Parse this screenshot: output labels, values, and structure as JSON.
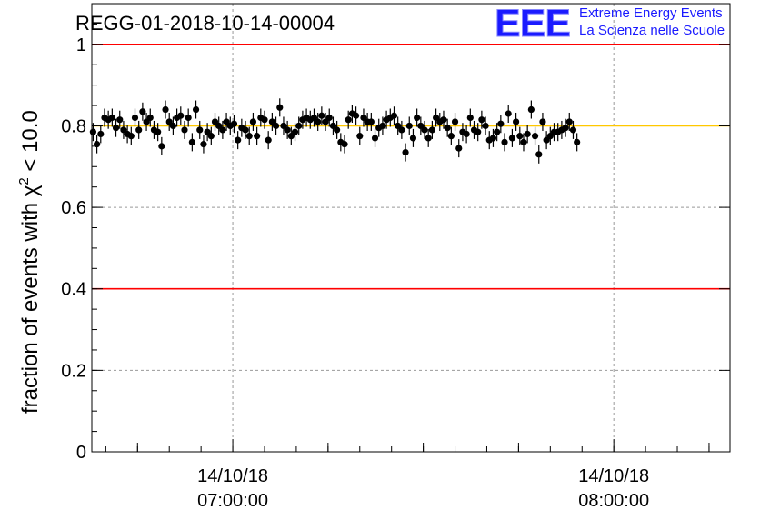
{
  "chart_data": {
    "type": "scatter",
    "title": "REGG-01-2018-10-14-00004",
    "ylabel": "fraction of events with χ² < 10.0",
    "ylabel_main": "fraction of events with ",
    "ylabel_chi": "χ",
    "ylabel_sup": "2",
    "ylabel_tail": " < 10.0",
    "ylim": [
      0,
      1.1
    ],
    "yticks": [
      {
        "value": 0,
        "label": "0"
      },
      {
        "value": 0.2,
        "label": "0.2"
      },
      {
        "value": 0.4,
        "label": "0.4"
      },
      {
        "value": 0.6,
        "label": "0.6"
      },
      {
        "value": 0.8,
        "label": "0.8"
      },
      {
        "value": 1,
        "label": "1"
      }
    ],
    "xlim_minutes": [
      37.8,
      138.3
    ],
    "x_major_ticks": [
      {
        "minute": 60,
        "date": "14/10/18",
        "time": "07:00:00"
      },
      {
        "minute": 120,
        "date": "14/10/18",
        "time": "08:00:00"
      }
    ],
    "x_minor_step_minutes": 15,
    "reference_lines": [
      {
        "y": 1.0,
        "color": "#ff0000"
      },
      {
        "y": 0.4,
        "color": "#ff0000"
      },
      {
        "y": 0.8,
        "color": "#ffc800"
      }
    ],
    "grid": true,
    "marker_color": "#000000",
    "series": [
      {
        "x_start_minute": 38.0,
        "x_step_minutes": 0.6,
        "y": [
          0.785,
          0.755,
          0.78,
          0.82,
          0.815,
          0.82,
          0.795,
          0.815,
          0.79,
          0.78,
          0.775,
          0.82,
          0.79,
          0.835,
          0.81,
          0.82,
          0.79,
          0.785,
          0.75,
          0.84,
          0.81,
          0.8,
          0.82,
          0.825,
          0.79,
          0.82,
          0.76,
          0.84,
          0.79,
          0.755,
          0.785,
          0.775,
          0.81,
          0.8,
          0.79,
          0.81,
          0.8,
          0.805,
          0.765,
          0.795,
          0.79,
          0.775,
          0.81,
          0.775,
          0.82,
          0.815,
          0.765,
          0.81,
          0.8,
          0.845,
          0.8,
          0.79,
          0.775,
          0.785,
          0.8,
          0.815,
          0.82,
          0.815,
          0.82,
          0.81,
          0.825,
          0.81,
          0.82,
          0.8,
          0.79,
          0.76,
          0.755,
          0.815,
          0.83,
          0.825,
          0.775,
          0.82,
          0.81,
          0.81,
          0.77,
          0.795,
          0.8,
          0.815,
          0.82,
          0.825,
          0.8,
          0.79,
          0.735,
          0.8,
          0.77,
          0.82,
          0.8,
          0.79,
          0.77,
          0.79,
          0.82,
          0.81,
          0.815,
          0.795,
          0.775,
          0.81,
          0.745,
          0.785,
          0.78,
          0.82,
          0.79,
          0.785,
          0.815,
          0.8,
          0.765,
          0.77,
          0.785,
          0.805,
          0.76,
          0.83,
          0.77,
          0.81,
          0.775,
          0.76,
          0.78,
          0.84,
          0.775,
          0.73,
          0.81,
          0.765,
          0.775,
          0.785,
          0.785,
          0.79,
          0.795,
          0.81,
          0.79,
          0.76
        ]
      }
    ]
  },
  "logo": {
    "mark": "EEE",
    "line1": "Extreme Energy Events",
    "line2": "La Scienza nelle Scuole",
    "color": "#1a1aff"
  }
}
